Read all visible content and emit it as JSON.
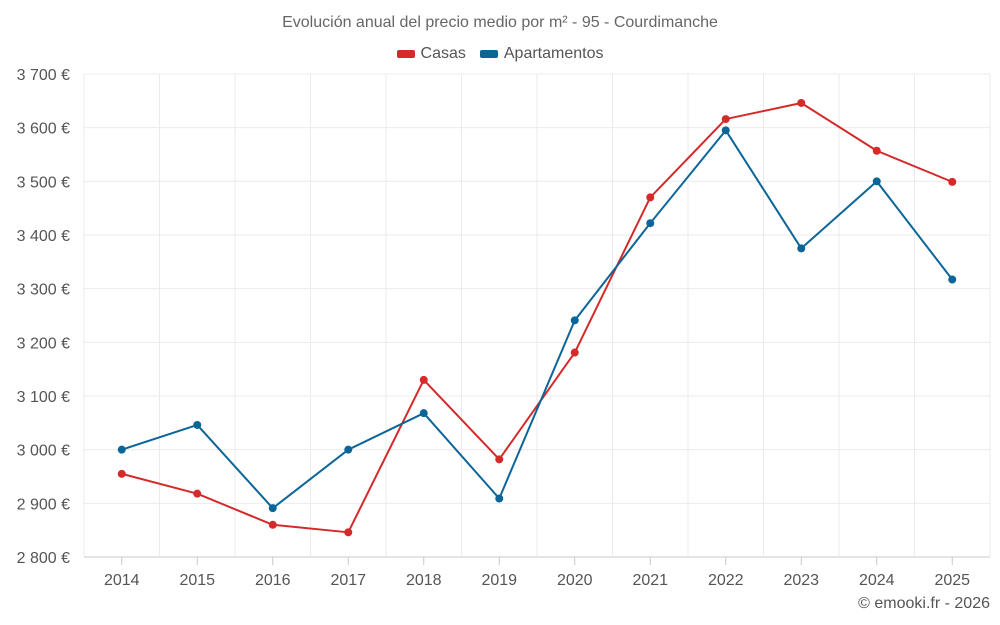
{
  "chart_data": {
    "type": "line",
    "title": "Evolución anual del precio medio por m² - 95 - Courdimanche",
    "xlabel": "",
    "ylabel": "",
    "categories": [
      "2014",
      "2015",
      "2016",
      "2017",
      "2018",
      "2019",
      "2020",
      "2021",
      "2022",
      "2023",
      "2024",
      "2025"
    ],
    "ylim": [
      2800,
      3700
    ],
    "yticks": [
      2800,
      2900,
      3000,
      3100,
      3200,
      3300,
      3400,
      3500,
      3600,
      3700
    ],
    "ytick_labels": [
      "2 800 €",
      "2 900 €",
      "3 000 €",
      "3 100 €",
      "3 200 €",
      "3 300 €",
      "3 400 €",
      "3 500 €",
      "3 600 €",
      "3 700 €"
    ],
    "grid": true,
    "legend_position": "top-center",
    "series": [
      {
        "name": "Casas",
        "color": "#d42a2a",
        "values": [
          2955,
          2918,
          2860,
          2846,
          3130,
          2982,
          3181,
          3470,
          3616,
          3646,
          3557,
          3499
        ]
      },
      {
        "name": "Apartamentos",
        "color": "#0c6598",
        "values": [
          3000,
          3046,
          2891,
          3000,
          3068,
          2909,
          3241,
          3422,
          3595,
          3375,
          3500,
          3317
        ]
      }
    ]
  },
  "credit": "© emooki.fr - 2026"
}
